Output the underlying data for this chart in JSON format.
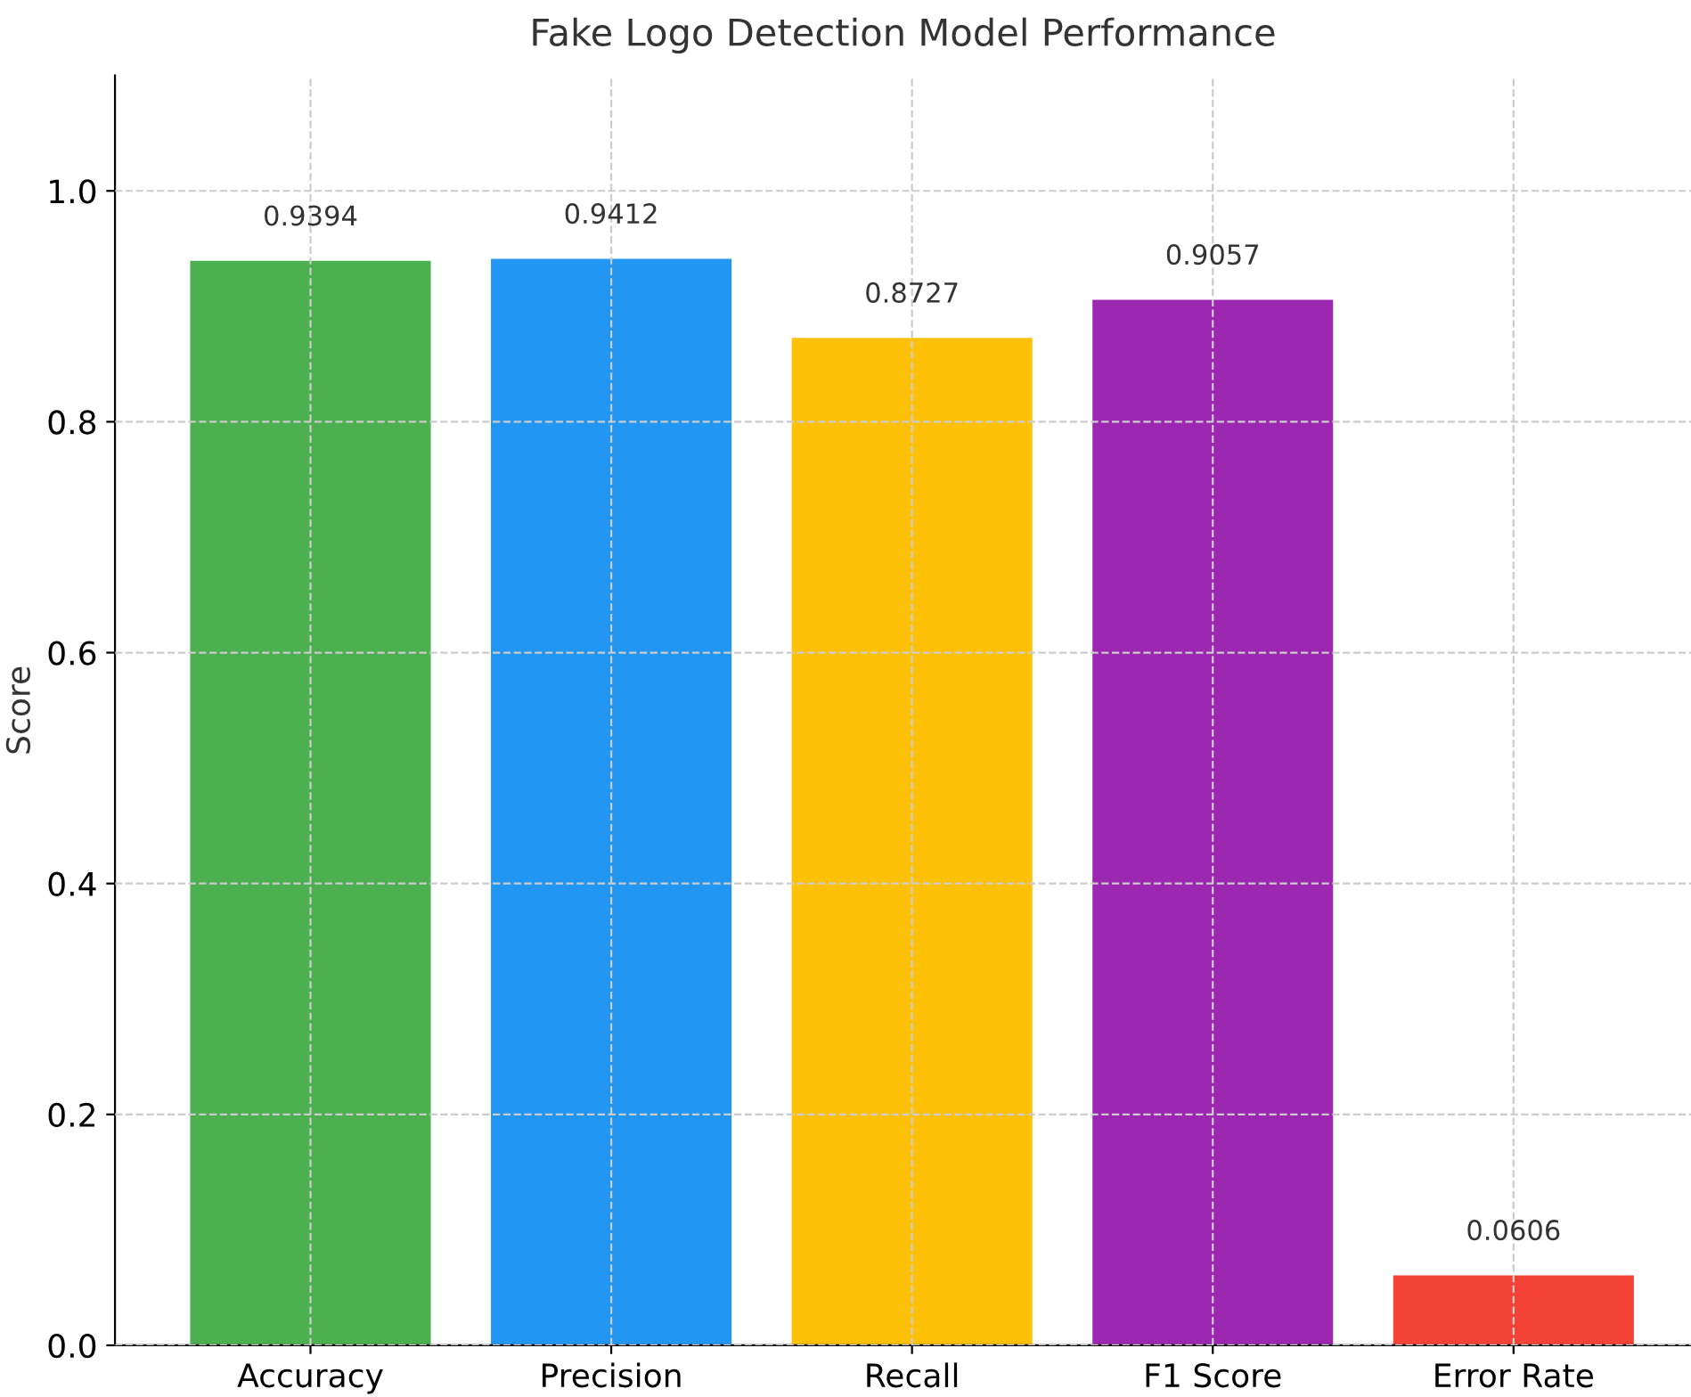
{
  "chart_data": {
    "type": "bar",
    "title": "Fake Logo Detection Model Performance",
    "ylabel": "Score",
    "categories": [
      "Accuracy",
      "Precision",
      "Recall",
      "F1 Score",
      "Error Rate"
    ],
    "values": [
      0.9394,
      0.9412,
      0.8727,
      0.9057,
      0.0606
    ],
    "colors": [
      "#4caf50",
      "#2196f3",
      "#ffc107",
      "#9c27b0",
      "#f44336"
    ],
    "ylim": [
      0,
      1.1
    ],
    "yticks": [
      {
        "value": 0,
        "label": "0.0"
      },
      0.2,
      0.4,
      0.6,
      0.8,
      {
        "value": 1,
        "label": "1.0"
      }
    ],
    "data_labels": true,
    "grid": true
  }
}
